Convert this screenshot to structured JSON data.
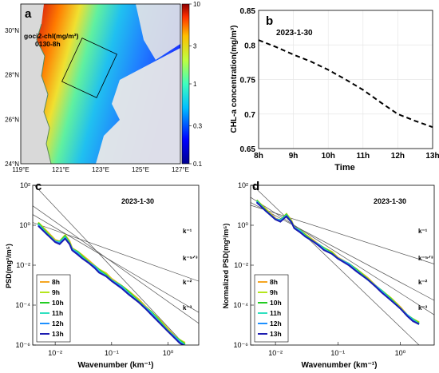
{
  "panels": [
    {
      "tag": "a"
    },
    {
      "tag": "b"
    },
    {
      "tag": "c"
    },
    {
      "tag": "d"
    }
  ],
  "map": {
    "product_label": "goci2-chl(mg/m³)",
    "time_label": "0130-8h",
    "lon_ticks": [
      "119°E",
      "121°E",
      "123°E",
      "125°E",
      "127°E"
    ],
    "lat_ticks": [
      "30°N",
      "28°N",
      "26°N",
      "24°N"
    ],
    "colorbar_ticks": [
      "10",
      "3",
      "1",
      "0.3",
      "0.1"
    ],
    "colorbar_scale": "log",
    "colorbar_range": [
      0.1,
      10
    ],
    "colors": {
      "land": "#d9d9d9",
      "coast": "#5a8a5a",
      "low": "#1a1aff",
      "high": "#c00000"
    }
  },
  "chart_data": [
    {
      "panel": "b",
      "type": "line",
      "annotation": "2023-1-30",
      "xlabel": "Time",
      "ylabel": "CHL-a concentration(mg/m³)",
      "categories": [
        "8h",
        "9h",
        "10h",
        "11h",
        "12h",
        "13h"
      ],
      "x": [
        8,
        9,
        10,
        11,
        12,
        13
      ],
      "xlim": [
        8,
        13
      ],
      "ylim": [
        0.65,
        0.85
      ],
      "yticks": [
        0.65,
        0.7,
        0.75,
        0.8,
        0.85
      ],
      "grid": true,
      "line_style": "dashed",
      "series": [
        {
          "x": [
            8,
            8.5,
            9,
            9.5,
            10,
            10.5,
            11,
            11.5,
            12,
            12.5,
            13
          ],
          "values": [
            0.807,
            0.797,
            0.786,
            0.776,
            0.764,
            0.75,
            0.735,
            0.717,
            0.7,
            0.69,
            0.681
          ]
        }
      ]
    },
    {
      "panel": "c",
      "type": "line",
      "annotation": "2023-1-30",
      "xlabel": "Wavenumber (km⁻¹)",
      "ylabel": "PSD(mg²/m⁵)",
      "xscale": "log",
      "yscale": "log",
      "xlim": [
        0.004,
        3.5
      ],
      "ylim": [
        1e-06,
        100
      ],
      "xticks": [
        0.01,
        0.1,
        1
      ],
      "xtick_labels": [
        "10⁻²",
        "10⁻¹",
        "10⁰"
      ],
      "yticks": [
        1e-06,
        0.0001,
        0.01,
        1,
        100
      ],
      "ytick_labels": [
        "10⁻⁶",
        "10⁻⁴",
        "10⁻²",
        "10⁰",
        "10²"
      ],
      "legend_placement": "bottom-left",
      "reference_slopes": [
        {
          "label": "k⁻¹",
          "exp": -1,
          "anchor_x": 0.01,
          "anchor_y": 0.55
        },
        {
          "label": "k⁻⁵ᐟ³",
          "exp": -1.667,
          "anchor_x": 0.01,
          "anchor_y": 0.75
        },
        {
          "label": "k⁻²",
          "exp": -2,
          "anchor_x": 0.01,
          "anchor_y": 1.5
        },
        {
          "label": "k⁻³",
          "exp": -3,
          "anchor_x": 0.01,
          "anchor_y": 8
        }
      ],
      "base_curve": {
        "x": [
          0.005,
          0.007,
          0.01,
          0.012,
          0.015,
          0.018,
          0.02,
          0.025,
          0.03,
          0.04,
          0.05,
          0.06,
          0.08,
          0.1,
          0.15,
          0.2,
          0.3,
          0.4,
          0.5,
          0.7,
          1.0,
          1.3,
          1.6,
          2.0
        ],
        "y": [
          1.1,
          0.4,
          0.15,
          0.13,
          0.25,
          0.12,
          0.06,
          0.04,
          0.025,
          0.013,
          0.008,
          0.005,
          0.003,
          0.0017,
          0.0008,
          0.0004,
          0.00015,
          7e-05,
          4e-05,
          1.5e-05,
          5e-06,
          2.5e-06,
          1.5e-06,
          1e-06
        ]
      },
      "series": [
        {
          "name": "8h",
          "color": "#f5a623",
          "scale": 1.25
        },
        {
          "name": "9h",
          "color": "#b5e61d",
          "scale": 1.18
        },
        {
          "name": "10h",
          "color": "#22cc22",
          "scale": 1.1
        },
        {
          "name": "11h",
          "color": "#30e0c0",
          "scale": 1.03
        },
        {
          "name": "12h",
          "color": "#1e90ff",
          "scale": 0.96
        },
        {
          "name": "13h",
          "color": "#1c1cb0",
          "scale": 0.9
        }
      ]
    },
    {
      "panel": "d",
      "type": "line",
      "annotation": "2023-1-30",
      "xlabel": "Wavenumber (km⁻¹)",
      "ylabel": "Normalized PSD(mg²/m⁵)",
      "xscale": "log",
      "yscale": "log",
      "xlim": [
        0.004,
        3.5
      ],
      "ylim": [
        1e-06,
        100
      ],
      "xticks": [
        0.01,
        0.1,
        1
      ],
      "xtick_labels": [
        "10⁻²",
        "10⁻¹",
        "10⁰"
      ],
      "yticks": [
        1e-06,
        0.0001,
        0.01,
        1,
        100
      ],
      "ytick_labels": [
        "10⁻⁶",
        "10⁻⁴",
        "10⁻²",
        "10⁰",
        "10²"
      ],
      "legend_placement": "bottom-left",
      "reference_slopes": [
        {
          "label": "k⁻¹",
          "exp": -1,
          "anchor_x": 0.01,
          "anchor_y": 4
        },
        {
          "label": "k⁻⁵ᐟ³",
          "exp": -1.667,
          "anchor_x": 0.01,
          "anchor_y": 3
        },
        {
          "label": "k⁻²",
          "exp": -2,
          "anchor_x": 0.01,
          "anchor_y": 4
        },
        {
          "label": "k⁻³",
          "exp": -3,
          "anchor_x": 0.01,
          "anchor_y": 8
        }
      ],
      "base_curve": {
        "x": [
          0.005,
          0.007,
          0.01,
          0.012,
          0.015,
          0.018,
          0.02,
          0.025,
          0.03,
          0.04,
          0.05,
          0.06,
          0.08,
          0.1,
          0.15,
          0.2,
          0.3,
          0.4,
          0.5,
          0.7,
          1.0,
          1.3,
          1.6,
          2.0
        ],
        "y": [
          16,
          5.5,
          2.0,
          1.7,
          3.2,
          1.5,
          0.75,
          0.5,
          0.3,
          0.16,
          0.1,
          0.065,
          0.04,
          0.022,
          0.011,
          0.0055,
          0.002,
          0.0009,
          0.0005,
          0.0002,
          7e-05,
          3e-05,
          1.8e-05,
          1.2e-05
        ]
      },
      "series": [
        {
          "name": "8h",
          "color": "#f5a623",
          "scale": 1.12
        },
        {
          "name": "9h",
          "color": "#b5e61d",
          "scale": 1.08
        },
        {
          "name": "10h",
          "color": "#22cc22",
          "scale": 1.04
        },
        {
          "name": "11h",
          "color": "#30e0c0",
          "scale": 1.0
        },
        {
          "name": "12h",
          "color": "#1e90ff",
          "scale": 0.96
        },
        {
          "name": "13h",
          "color": "#1c1cb0",
          "scale": 0.92
        }
      ]
    }
  ]
}
